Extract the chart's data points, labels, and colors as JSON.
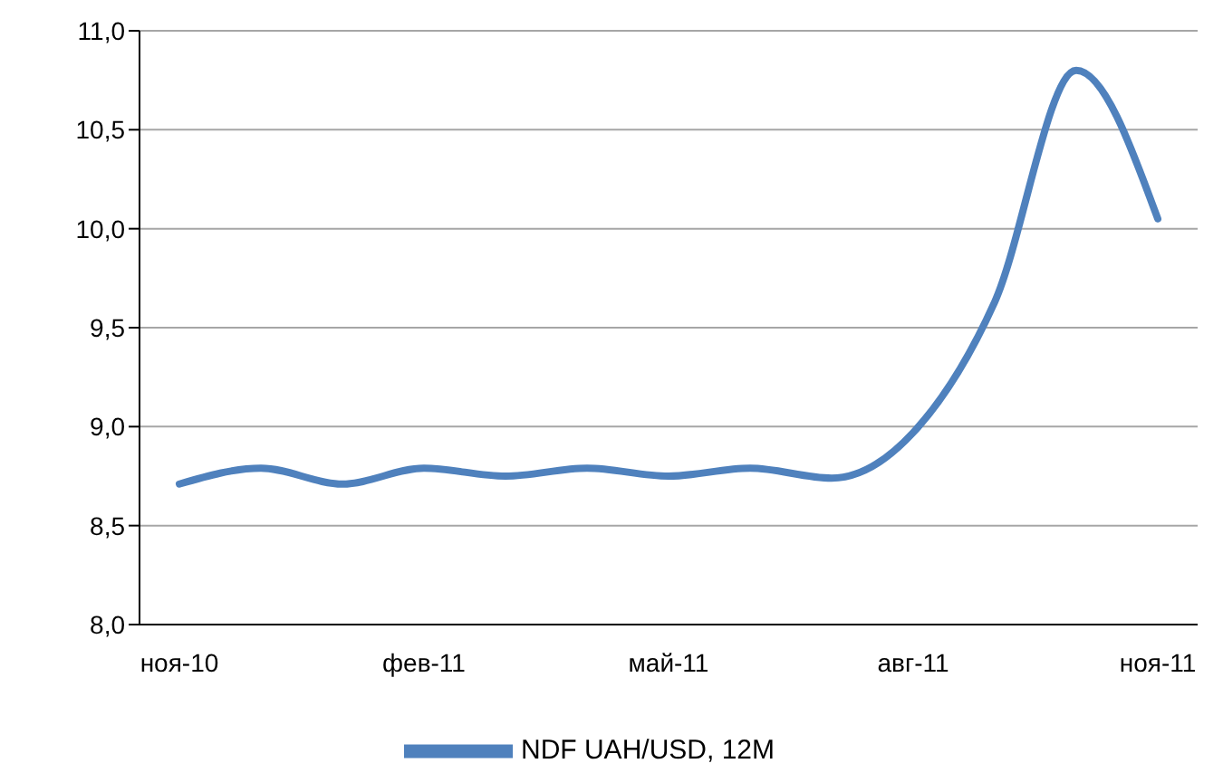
{
  "chart_data": {
    "type": "line",
    "categories": [
      "ноя-10",
      null,
      null,
      "фев-11",
      null,
      null,
      "май-11",
      null,
      null,
      "авг-11",
      null,
      null,
      "ноя-11"
    ],
    "series": [
      {
        "name": "NDF UAH/USD, 12M",
        "color": "#4f81bd",
        "values": [
          8.71,
          8.79,
          8.71,
          8.79,
          8.75,
          8.79,
          8.75,
          8.79,
          8.74,
          8.97,
          9.63,
          10.8,
          10.05
        ]
      }
    ],
    "ylim": [
      8,
      11
    ],
    "yticks": [
      {
        "value": 8,
        "label": "8,0"
      },
      {
        "value": 8.5,
        "label": "8,5"
      },
      {
        "value": 9,
        "label": "9,0"
      },
      {
        "value": 9.5,
        "label": "9,5"
      },
      {
        "value": 10,
        "label": "10,0"
      },
      {
        "value": 10.5,
        "label": "10,5"
      },
      {
        "value": 11,
        "label": "11,0"
      }
    ],
    "grid": "y",
    "legend": "bottom",
    "marker": "none",
    "line_style": "solid"
  }
}
